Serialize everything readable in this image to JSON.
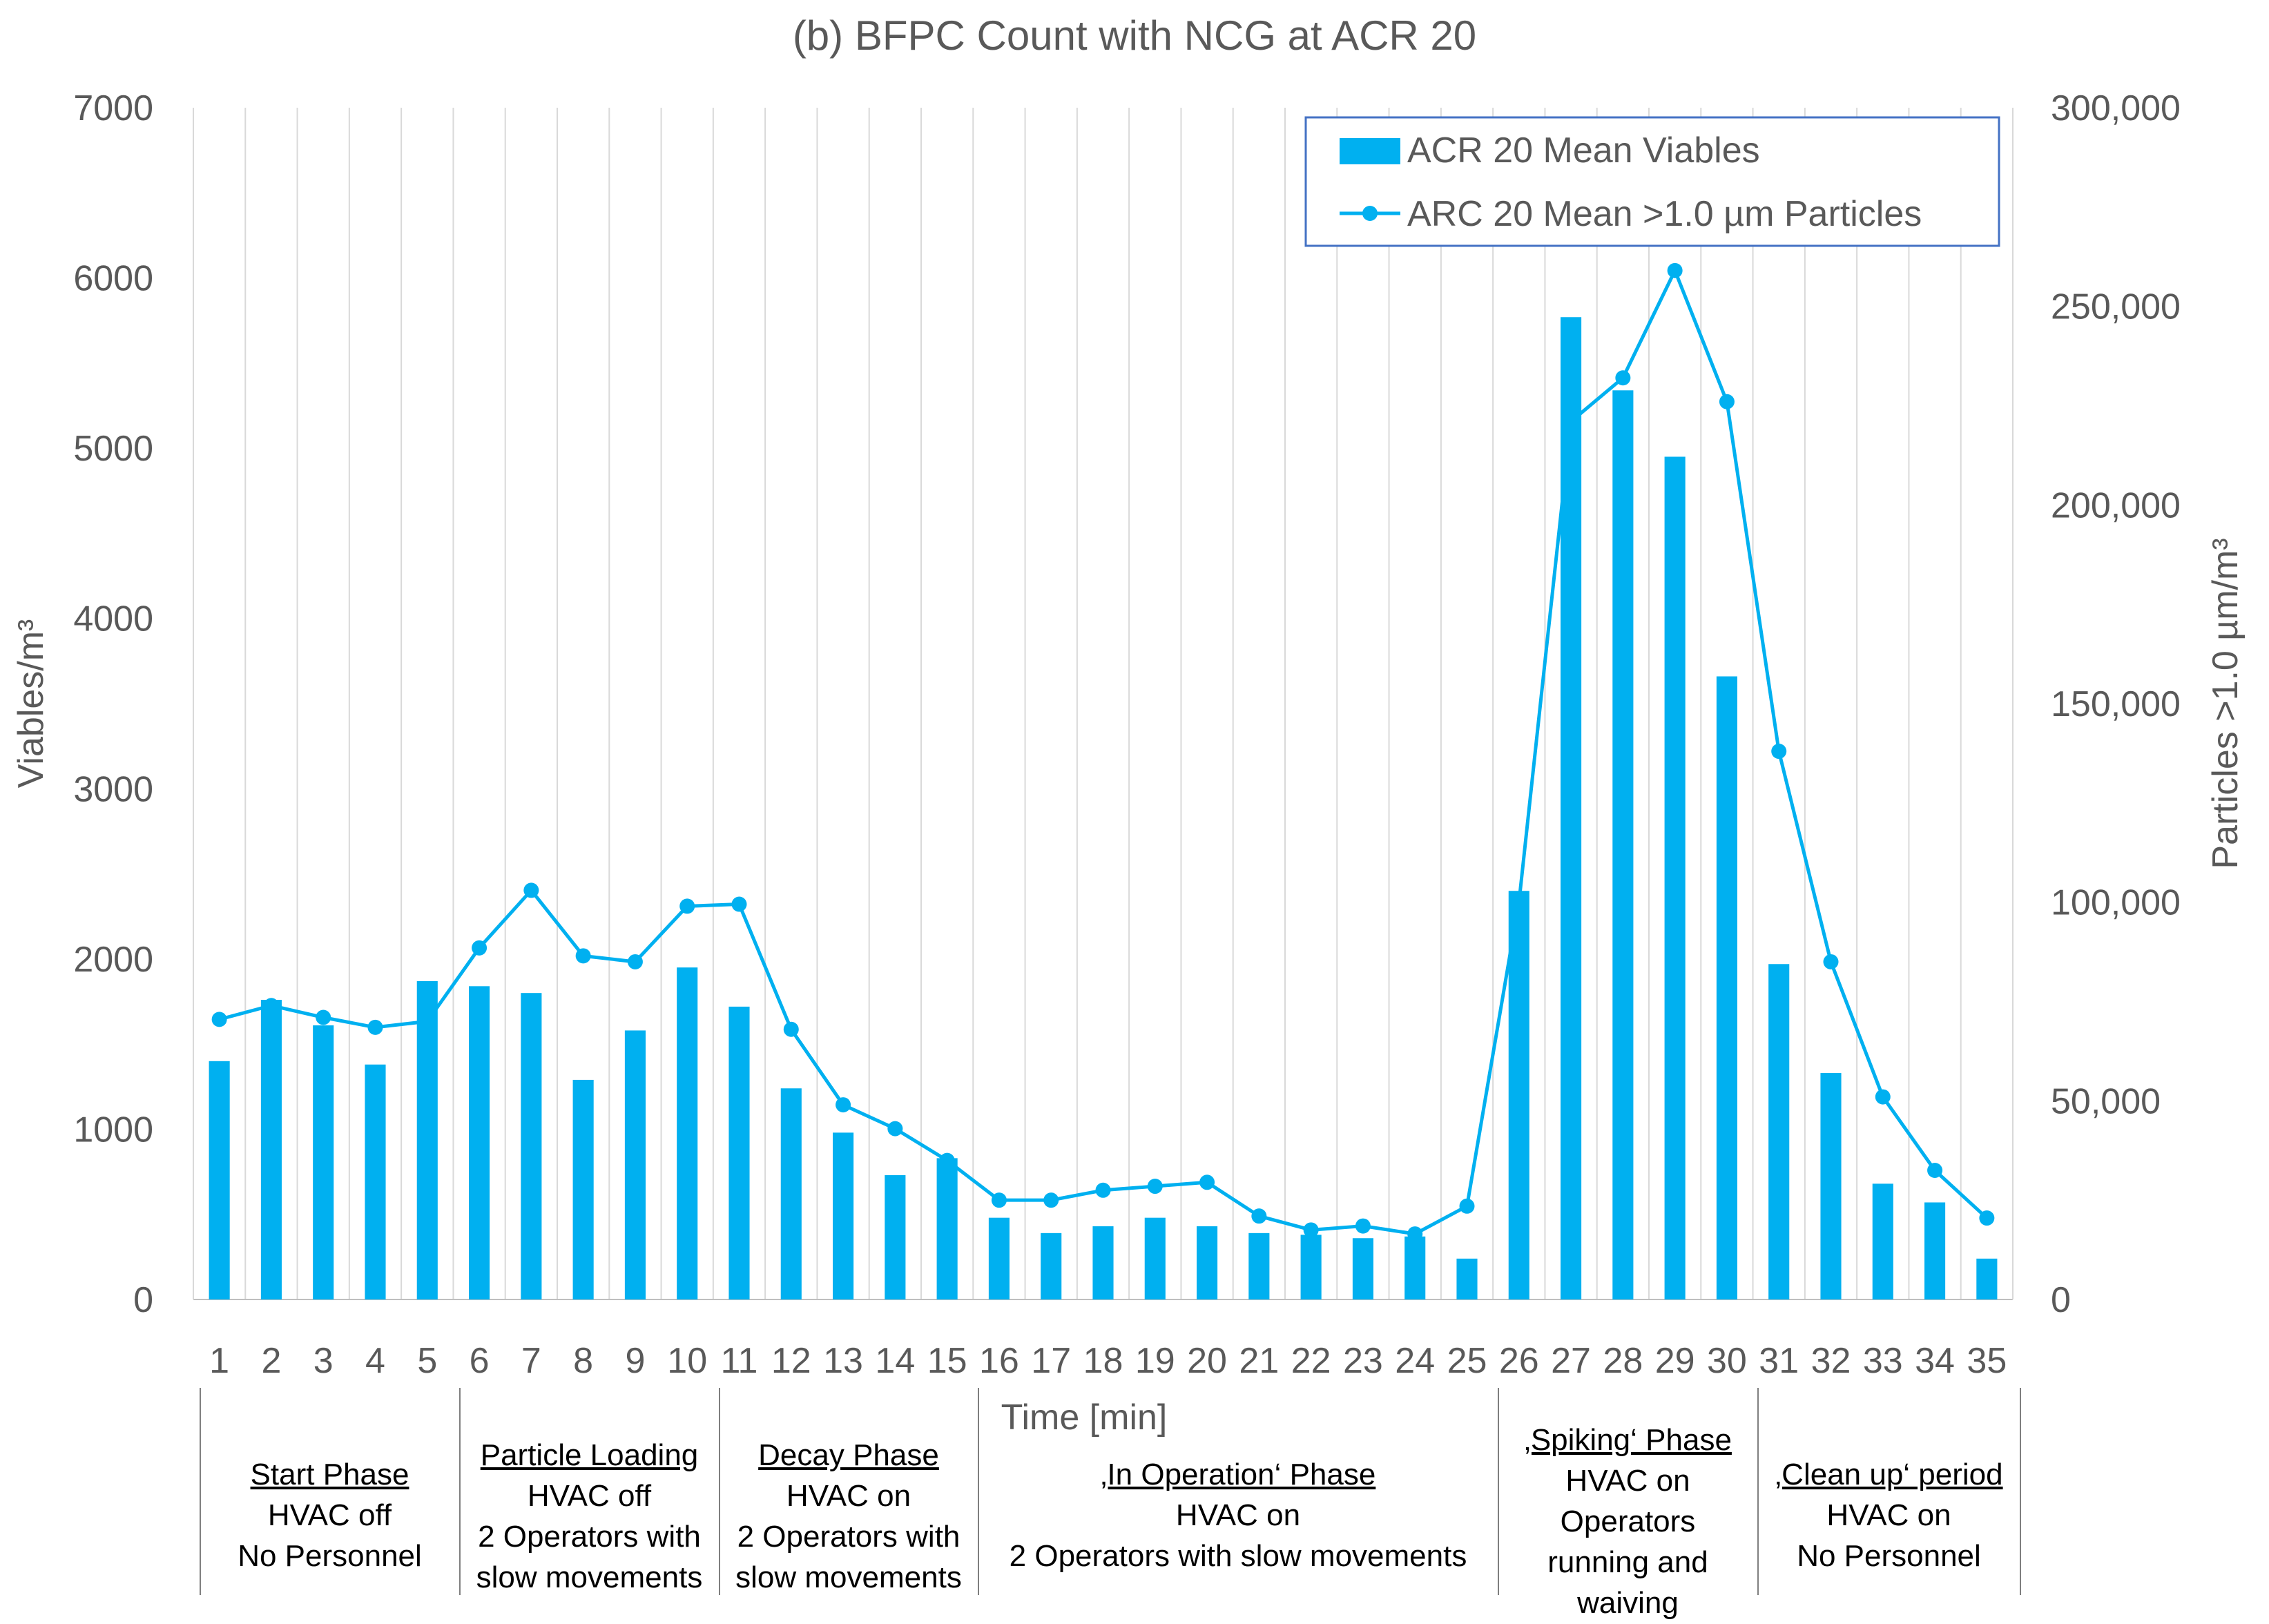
{
  "chart_data": {
    "type": "bar+line",
    "title": "(b) BFPC Count with NCG at ACR 20",
    "xlabel": "Time [min]",
    "ylabel_left": "Viables/m³",
    "ylabel_right": "Particles >1.0 µm/m³",
    "categories": [
      "1",
      "2",
      "3",
      "4",
      "5",
      "6",
      "7",
      "8",
      "9",
      "10",
      "11",
      "12",
      "13",
      "14",
      "15",
      "16",
      "17",
      "18",
      "19",
      "20",
      "21",
      "22",
      "23",
      "24",
      "25",
      "26",
      "27",
      "28",
      "29",
      "30",
      "31",
      "32",
      "33",
      "34",
      "35"
    ],
    "ylim_left": [
      0,
      7000
    ],
    "yticks_left": [
      "0",
      "1000",
      "2000",
      "3000",
      "4000",
      "5000",
      "6000",
      "7000"
    ],
    "ylim_right": [
      0,
      300000
    ],
    "yticks_right": [
      "0",
      "50,000",
      "100,000",
      "150,000",
      "200,000",
      "250,000",
      "300,000"
    ],
    "grid": "vertical",
    "legend_position": "top-right",
    "series": [
      {
        "name": "ACR 20 Mean Viables",
        "type": "bar",
        "axis": "left",
        "color": "#00B0F0",
        "values": [
          1400,
          1760,
          1610,
          1380,
          1870,
          1840,
          1800,
          1290,
          1580,
          1950,
          1720,
          1240,
          980,
          730,
          830,
          480,
          390,
          430,
          480,
          430,
          390,
          380,
          360,
          370,
          240,
          2400,
          5770,
          5340,
          4950,
          3660,
          1970,
          1330,
          680,
          570,
          240
        ]
      },
      {
        "name": "ARC 20 Mean >1.0 µm Particles",
        "type": "line",
        "axis": "right",
        "color": "#00B0F0",
        "values": [
          70500,
          74000,
          71000,
          68500,
          70000,
          88500,
          103000,
          86500,
          85000,
          99000,
          99500,
          68000,
          49000,
          43000,
          35000,
          25000,
          25000,
          27500,
          28500,
          29500,
          21000,
          17500,
          18500,
          16500,
          23500,
          100000,
          221000,
          232000,
          259000,
          226000,
          138000,
          85000,
          51000,
          32500,
          20500
        ]
      }
    ],
    "phases": [
      {
        "name": "Start Phase",
        "lines": [
          "HVAC off",
          "No Personnel"
        ],
        "range": [
          1,
          5
        ]
      },
      {
        "name": "Particle Loading",
        "lines": [
          "HVAC off",
          "2 Operators with",
          "slow movements"
        ],
        "range": [
          6,
          10
        ]
      },
      {
        "name": "Decay Phase",
        "lines": [
          "HVAC on",
          "2 Operators with",
          "slow movements"
        ],
        "range": [
          11,
          15
        ]
      },
      {
        "name": "‚In Operation‘ Phase",
        "lines": [
          "HVAC on",
          "2 Operators with slow movements"
        ],
        "range": [
          16,
          25
        ]
      },
      {
        "name": "‚Spiking‘ Phase",
        "lines": [
          "HVAC on",
          "Operators",
          "running and",
          "waiving"
        ],
        "range": [
          26,
          30
        ]
      },
      {
        "name": "‚Clean up‘ period",
        "lines": [
          "HVAC on",
          "No Personnel"
        ],
        "range": [
          31,
          35
        ]
      }
    ]
  }
}
